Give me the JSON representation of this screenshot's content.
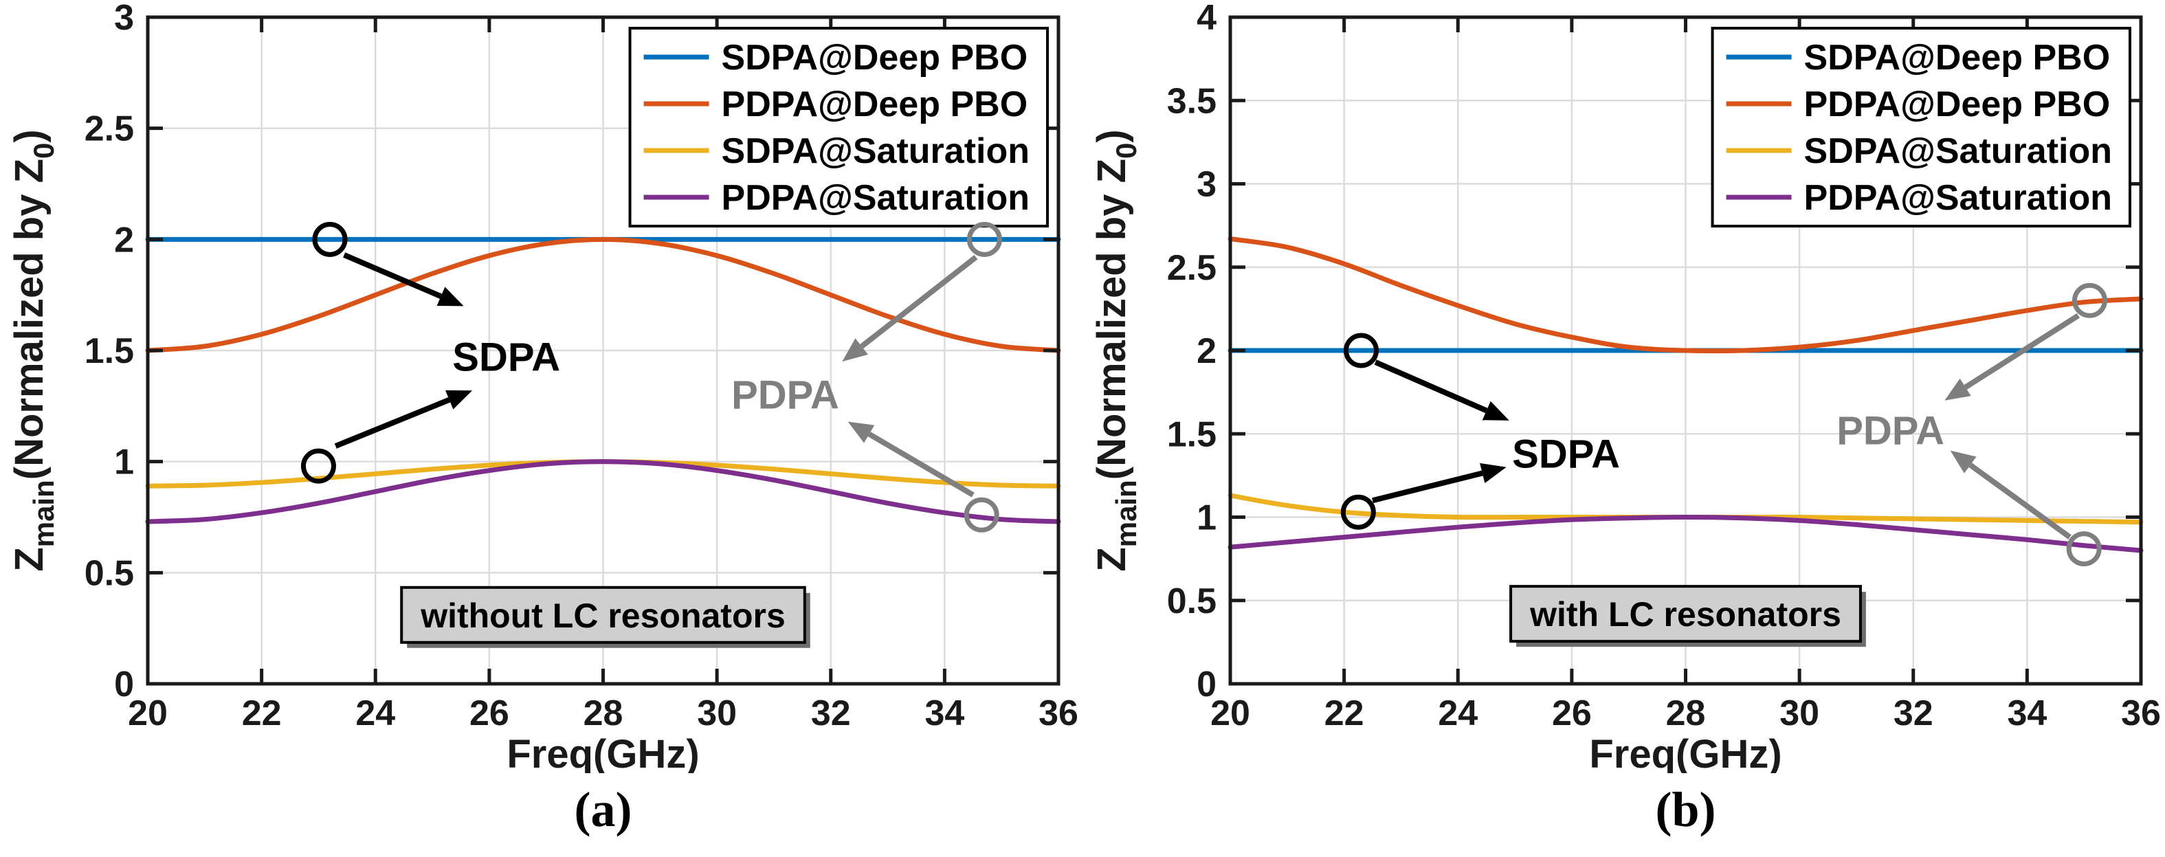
{
  "colors": {
    "blue": "#0072BD",
    "red": "#D95319",
    "yellow": "#EDB120",
    "purple": "#7E2F8E",
    "grid": "#DCDCDC",
    "axis": "#1A1A1A",
    "annotation_gray": "#7F7F7F",
    "box_fill": "#CFCFCF",
    "box_shadow": "#6E6E6E",
    "background": "#FFFFFF"
  },
  "chart_data": [
    {
      "type": "line",
      "caption": "(a)",
      "xlabel": "Freq(GHz)",
      "ylabel": "Z_{main}(Normalized by Z_{0})",
      "xlim": [
        20,
        36
      ],
      "ylim": [
        0,
        3
      ],
      "xticks": [
        20,
        22,
        24,
        26,
        28,
        30,
        32,
        34,
        36
      ],
      "yticks": [
        0,
        0.5,
        1,
        1.5,
        2,
        2.5,
        3
      ],
      "xtick_labels": [
        "20",
        "22",
        "24",
        "26",
        "28",
        "30",
        "32",
        "34",
        "36"
      ],
      "ytick_labels": [
        "0",
        "0.5",
        "1",
        "1.5",
        "2",
        "2.5",
        "3"
      ],
      "grid": true,
      "legend": {
        "position": "top-right",
        "entries": [
          {
            "label": "SDPA@Deep PBO",
            "color": "blue"
          },
          {
            "label": "PDPA@Deep PBO",
            "color": "red"
          },
          {
            "label": "SDPA@Saturation",
            "color": "yellow"
          },
          {
            "label": "PDPA@Saturation",
            "color": "purple"
          }
        ]
      },
      "series": [
        {
          "name": "SDPA@Deep PBO",
          "color": "blue",
          "points": [
            [
              20,
              2.0
            ],
            [
              36,
              2.0
            ]
          ]
        },
        {
          "name": "PDPA@Deep PBO",
          "color": "red",
          "points": [
            [
              20,
              1.5
            ],
            [
              21,
              1.519
            ],
            [
              22,
              1.573
            ],
            [
              23,
              1.654
            ],
            [
              24,
              1.75
            ],
            [
              25,
              1.846
            ],
            [
              26,
              1.927
            ],
            [
              27,
              1.981
            ],
            [
              28,
              2.0
            ],
            [
              29,
              1.981
            ],
            [
              30,
              1.927
            ],
            [
              31,
              1.846
            ],
            [
              32,
              1.75
            ],
            [
              33,
              1.654
            ],
            [
              34,
              1.573
            ],
            [
              35,
              1.519
            ],
            [
              36,
              1.5
            ]
          ]
        },
        {
          "name": "SDPA@Saturation",
          "color": "yellow",
          "points": [
            [
              20,
              0.89
            ],
            [
              21,
              0.894
            ],
            [
              22,
              0.906
            ],
            [
              23,
              0.924
            ],
            [
              24,
              0.945
            ],
            [
              25,
              0.966
            ],
            [
              26,
              0.984
            ],
            [
              27,
              0.996
            ],
            [
              28,
              1.0
            ],
            [
              29,
              0.996
            ],
            [
              30,
              0.984
            ],
            [
              31,
              0.966
            ],
            [
              32,
              0.945
            ],
            [
              33,
              0.924
            ],
            [
              34,
              0.906
            ],
            [
              35,
              0.894
            ],
            [
              36,
              0.89
            ]
          ]
        },
        {
          "name": "PDPA@Saturation",
          "color": "purple",
          "points": [
            [
              20,
              0.73
            ],
            [
              21,
              0.74
            ],
            [
              22,
              0.77
            ],
            [
              23,
              0.813
            ],
            [
              24,
              0.865
            ],
            [
              25,
              0.917
            ],
            [
              26,
              0.96
            ],
            [
              27,
              0.99
            ],
            [
              28,
              1.0
            ],
            [
              29,
              0.99
            ],
            [
              30,
              0.96
            ],
            [
              31,
              0.917
            ],
            [
              32,
              0.865
            ],
            [
              33,
              0.813
            ],
            [
              34,
              0.77
            ],
            [
              35,
              0.74
            ],
            [
              36,
              0.73
            ]
          ]
        }
      ],
      "annotations": [
        {
          "text": "SDPA",
          "x": 26.3,
          "y": 1.47,
          "color": "#000000",
          "circles": [
            {
              "x": 23.2,
              "y": 2.0
            },
            {
              "x": 23.0,
              "y": 0.98
            }
          ],
          "arrows": [
            {
              "x1": 23.45,
              "y1": 1.93,
              "x2": 25.55,
              "y2": 1.7
            },
            {
              "x1": 23.3,
              "y1": 1.07,
              "x2": 25.7,
              "y2": 1.32
            }
          ]
        },
        {
          "text": "PDPA",
          "x": 31.2,
          "y": 1.3,
          "color": "#7F7F7F",
          "circles": [
            {
              "x": 34.7,
              "y": 2.0
            },
            {
              "x": 34.65,
              "y": 0.76
            }
          ],
          "arrows": [
            {
              "x1": 34.55,
              "y1": 1.92,
              "x2": 32.2,
              "y2": 1.45
            },
            {
              "x1": 34.5,
              "y1": 0.85,
              "x2": 32.3,
              "y2": 1.18
            }
          ]
        }
      ],
      "note_box": {
        "text": "without LC resonators",
        "x": 28,
        "y": 0.31
      }
    },
    {
      "type": "line",
      "caption": "(b)",
      "xlabel": "Freq(GHz)",
      "ylabel": "Z_{main}(Normalized by Z_{0})",
      "xlim": [
        20,
        36
      ],
      "ylim": [
        0,
        4
      ],
      "xticks": [
        20,
        22,
        24,
        26,
        28,
        30,
        32,
        34,
        36
      ],
      "yticks": [
        0,
        0.5,
        1,
        1.5,
        2,
        2.5,
        3,
        3.5,
        4
      ],
      "xtick_labels": [
        "20",
        "22",
        "24",
        "26",
        "28",
        "30",
        "32",
        "34",
        "36"
      ],
      "ytick_labels": [
        "0",
        "0.5",
        "1",
        "1.5",
        "2",
        "2.5",
        "3",
        "3.5",
        "4"
      ],
      "grid": true,
      "legend": {
        "position": "top-right",
        "entries": [
          {
            "label": "SDPA@Deep PBO",
            "color": "blue"
          },
          {
            "label": "PDPA@Deep PBO",
            "color": "red"
          },
          {
            "label": "SDPA@Saturation",
            "color": "yellow"
          },
          {
            "label": "PDPA@Saturation",
            "color": "purple"
          }
        ]
      },
      "series": [
        {
          "name": "SDPA@Deep PBO",
          "color": "blue",
          "points": [
            [
              20,
              2.0
            ],
            [
              36,
              2.0
            ]
          ]
        },
        {
          "name": "PDPA@Deep PBO",
          "color": "red",
          "points": [
            [
              20,
              2.67
            ],
            [
              21,
              2.62
            ],
            [
              22,
              2.52
            ],
            [
              23,
              2.39
            ],
            [
              24,
              2.27
            ],
            [
              25,
              2.16
            ],
            [
              26,
              2.08
            ],
            [
              27,
              2.02
            ],
            [
              28,
              2.0
            ],
            [
              29,
              2.0
            ],
            [
              30,
              2.02
            ],
            [
              31,
              2.06
            ],
            [
              32,
              2.12
            ],
            [
              33,
              2.18
            ],
            [
              34,
              2.24
            ],
            [
              35,
              2.29
            ],
            [
              36,
              2.31
            ]
          ]
        },
        {
          "name": "SDPA@Saturation",
          "color": "yellow",
          "points": [
            [
              20,
              1.13
            ],
            [
              21,
              1.07
            ],
            [
              22,
              1.03
            ],
            [
              23,
              1.01
            ],
            [
              24,
              1.0
            ],
            [
              25,
              1.0
            ],
            [
              26,
              1.0
            ],
            [
              27,
              1.0
            ],
            [
              28,
              1.0
            ],
            [
              29,
              1.0
            ],
            [
              30,
              1.0
            ],
            [
              31,
              0.995
            ],
            [
              32,
              0.99
            ],
            [
              33,
              0.985
            ],
            [
              34,
              0.98
            ],
            [
              35,
              0.975
            ],
            [
              36,
              0.97
            ]
          ]
        },
        {
          "name": "PDPA@Saturation",
          "color": "purple",
          "points": [
            [
              20,
              0.82
            ],
            [
              21,
              0.85
            ],
            [
              22,
              0.88
            ],
            [
              23,
              0.91
            ],
            [
              24,
              0.94
            ],
            [
              25,
              0.965
            ],
            [
              26,
              0.985
            ],
            [
              27,
              0.995
            ],
            [
              28,
              1.0
            ],
            [
              29,
              0.995
            ],
            [
              30,
              0.98
            ],
            [
              31,
              0.955
            ],
            [
              32,
              0.925
            ],
            [
              33,
              0.895
            ],
            [
              34,
              0.865
            ],
            [
              35,
              0.83
            ],
            [
              36,
              0.8
            ]
          ]
        }
      ],
      "annotations": [
        {
          "text": "SDPA",
          "x": 25.9,
          "y": 1.38,
          "color": "#000000",
          "circles": [
            {
              "x": 22.3,
              "y": 2.0
            },
            {
              "x": 22.25,
              "y": 1.03
            }
          ],
          "arrows": [
            {
              "x1": 22.55,
              "y1": 1.93,
              "x2": 24.9,
              "y2": 1.58
            },
            {
              "x1": 22.5,
              "y1": 1.1,
              "x2": 24.85,
              "y2": 1.3
            }
          ]
        },
        {
          "text": "PDPA",
          "x": 31.6,
          "y": 1.52,
          "color": "#7F7F7F",
          "circles": [
            {
              "x": 35.1,
              "y": 2.3
            },
            {
              "x": 35.0,
              "y": 0.81
            }
          ],
          "arrows": [
            {
              "x1": 34.9,
              "y1": 2.21,
              "x2": 32.55,
              "y2": 1.7
            },
            {
              "x1": 34.75,
              "y1": 0.88,
              "x2": 32.65,
              "y2": 1.4
            }
          ]
        }
      ],
      "note_box": {
        "text": "with LC resonators",
        "x": 28,
        "y": 0.42
      }
    }
  ]
}
